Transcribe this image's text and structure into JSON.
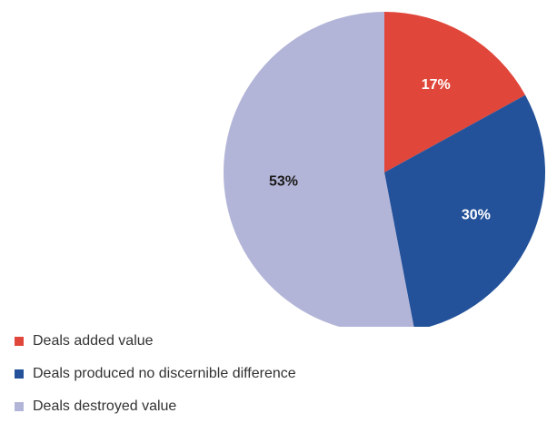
{
  "chart_data": {
    "type": "pie",
    "title": "",
    "categories": [
      "Deals added value",
      "Deals produced no discernible difference",
      "Deals destroyed value"
    ],
    "values": [
      17,
      30,
      53
    ],
    "labels": [
      "17%",
      "30%",
      "53%"
    ],
    "colors": [
      "#e0463a",
      "#23529a",
      "#b3b5d8"
    ],
    "label_colors": [
      "#ffffff",
      "#ffffff",
      "#1a1a1a"
    ],
    "start_angle_deg": 0,
    "direction": "clockwise",
    "legend_position": "bottom-left"
  }
}
